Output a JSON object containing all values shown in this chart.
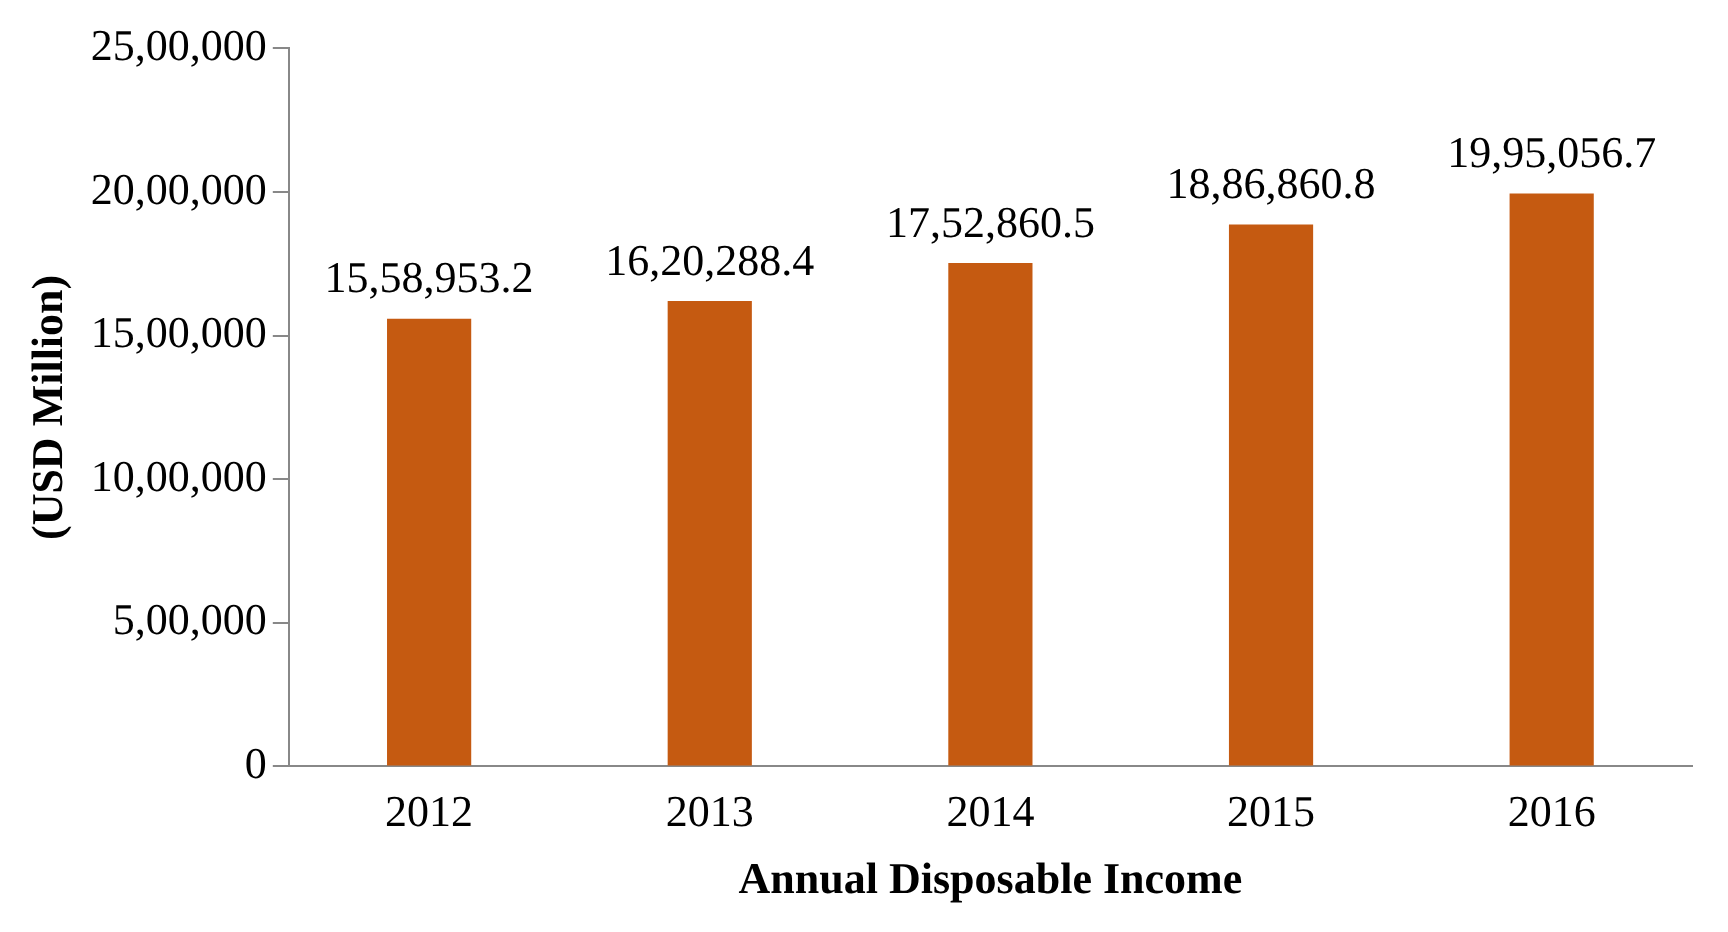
{
  "chart_data": {
    "type": "bar",
    "xlabel": "Annual Disposable Income",
    "ylabel": "(USD Million)",
    "categories": [
      "2012",
      "2013",
      "2014",
      "2015",
      "2016"
    ],
    "values": [
      1558953.2,
      1620288.4,
      1752860.5,
      1886860.8,
      1995056.7
    ],
    "value_labels": [
      "15,58,953.2",
      "16,20,288.4",
      "17,52,860.5",
      "18,86,860.8",
      "19,95,056.7"
    ],
    "color": "#c55a11",
    "ylim": [
      0,
      2500000
    ],
    "yticks": [
      {
        "value": 0,
        "label": "0"
      },
      {
        "value": 500000,
        "label": "5,00,000"
      },
      {
        "value": 1000000,
        "label": "10,00,000"
      },
      {
        "value": 1500000,
        "label": "15,00,000"
      },
      {
        "value": 2000000,
        "label": "20,00,000"
      },
      {
        "value": 2500000,
        "label": "25,00,000"
      }
    ],
    "grid": false,
    "legend": false
  }
}
